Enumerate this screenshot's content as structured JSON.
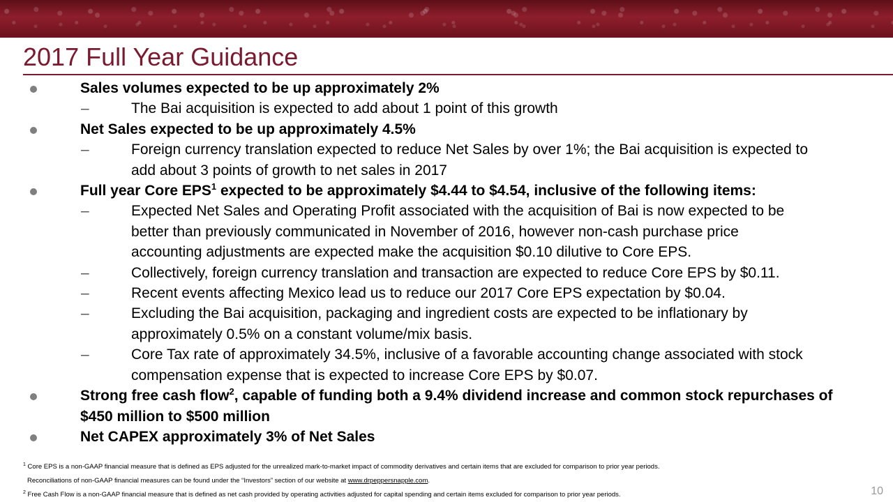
{
  "title": "2017 Full Year Guidance",
  "bullets": {
    "b1": "Sales volumes expected to be up approximately 2%",
    "b1_sub1": "The Bai acquisition is expected to add about 1 point of this growth",
    "b2": "Net Sales expected to be up approximately 4.5%",
    "b2_sub1_line1": "Foreign currency translation expected to reduce Net Sales by over 1%; the Bai acquisition is expected to",
    "b2_sub1_line2": "add about 3 points of growth to net sales in 2017",
    "b3_pre": "Full year Core EPS",
    "b3_sup": "1",
    "b3_post": " expected to be approximately $4.44 to $4.54, inclusive of the following items:",
    "b3_sub1_line1": "Expected Net Sales and Operating Profit associated with the acquisition of Bai is now expected to be",
    "b3_sub1_line2": "better than previously communicated in November of 2016, however non-cash purchase price",
    "b3_sub1_line3": "accounting adjustments are expected make the acquisition $0.10 dilutive to Core EPS.",
    "b3_sub2": "Collectively, foreign currency translation and transaction are expected to reduce Core EPS by $0.11.",
    "b3_sub3": "Recent events affecting Mexico lead us to reduce our 2017 Core EPS expectation by $0.04.",
    "b3_sub4_line1": "Excluding the Bai acquisition, packaging and ingredient costs are expected to be inflationary by",
    "b3_sub4_line2": "approximately 0.5% on a constant volume/mix basis.",
    "b3_sub5_line1": "Core Tax rate of approximately 34.5%, inclusive of a favorable accounting change associated with stock",
    "b3_sub5_line2": "compensation expense that is expected to increase Core EPS by $0.07.",
    "b4_pre": "Strong free cash flow",
    "b4_sup": "2",
    "b4_post": ", capable of funding both a 9.4% dividend increase and common stock repurchases of",
    "b4_line2": "$450 million to $500 million",
    "b5": "Net CAPEX approximately 3% of Net Sales"
  },
  "dash_symbol": "–",
  "footnotes": {
    "fn1_mark": "1",
    "fn1_line1": "Core EPS is a non-GAAP financial measure that is defined as EPS adjusted for the unrealized mark-to-market impact of commodity derivatives and certain items that are excluded for comparison to prior year periods.",
    "fn1_line2_pre": "Reconciliations of non-GAAP financial measures can be found under the “Investors” section of our website at ",
    "fn1_link": "www.drpeppersnapple.com",
    "fn1_line2_post": ".",
    "fn2_mark": "2",
    "fn2_text": "Free Cash Flow is a non-GAAP financial measure that is defined as net cash provided by operating activities adjusted for capital spending and certain items excluded for comparison to prior year periods."
  },
  "page_number": "10",
  "colors": {
    "title": "#7a1a2e",
    "banner": "#8e1e2c",
    "bullet": "#7f7f7f"
  }
}
